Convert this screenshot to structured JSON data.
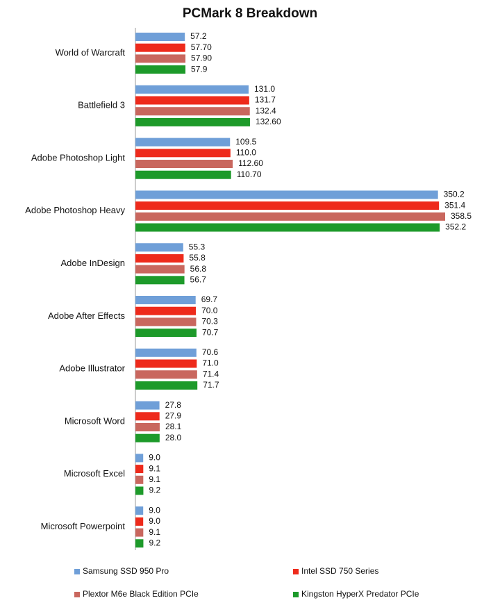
{
  "chart_data": {
    "type": "hbar",
    "title": "PCMark 8 Breakdown",
    "categories": [
      "World of Warcraft",
      "Battlefield 3",
      "Adobe Photoshop Light",
      "Adobe Photoshop Heavy",
      "Adobe InDesign",
      "Adobe After Effects",
      "Adobe Illustrator",
      "Microsoft Word",
      "Microsoft Excel",
      "Microsoft Powerpoint"
    ],
    "series": [
      {
        "name": "Samsung SSD 950 Pro",
        "color": "#6f9fd8",
        "values": [
          57.2,
          131.0,
          109.5,
          350.2,
          55.3,
          69.7,
          70.6,
          27.8,
          9.0,
          9.0
        ],
        "value_labels": [
          "57.2",
          "131.0",
          "109.5",
          "350.2",
          "55.3",
          "69.7",
          "70.6",
          "27.8",
          "9.0",
          "9.0"
        ]
      },
      {
        "name": "Intel SSD 750 Series",
        "color": "#ee2a1b",
        "values": [
          57.7,
          131.7,
          110.0,
          351.4,
          55.8,
          70.0,
          71.0,
          27.9,
          9.1,
          9.0
        ],
        "value_labels": [
          "57.70",
          "131.7",
          "110.0",
          "351.4",
          "55.8",
          "70.0",
          "71.0",
          "27.9",
          "9.1",
          "9.0"
        ]
      },
      {
        "name": "Plextor M6e Black Edition PCIe",
        "color": "#c9675e",
        "values": [
          57.9,
          132.4,
          112.6,
          358.5,
          56.8,
          70.3,
          71.4,
          28.1,
          9.1,
          9.1
        ],
        "value_labels": [
          "57.90",
          "132.4",
          "112.60",
          "358.5",
          "56.8",
          "70.3",
          "71.4",
          "28.1",
          "9.1",
          "9.1"
        ]
      },
      {
        "name": "Kingston HyperX Predator PCIe",
        "color": "#1d9a2a",
        "values": [
          57.9,
          132.6,
          110.7,
          352.2,
          56.7,
          70.7,
          71.7,
          28.0,
          9.2,
          9.2
        ],
        "value_labels": [
          "57.9",
          "132.60",
          "110.70",
          "352.2",
          "56.7",
          "70.7",
          "71.7",
          "28.0",
          "9.2",
          "9.2"
        ]
      }
    ]
  }
}
